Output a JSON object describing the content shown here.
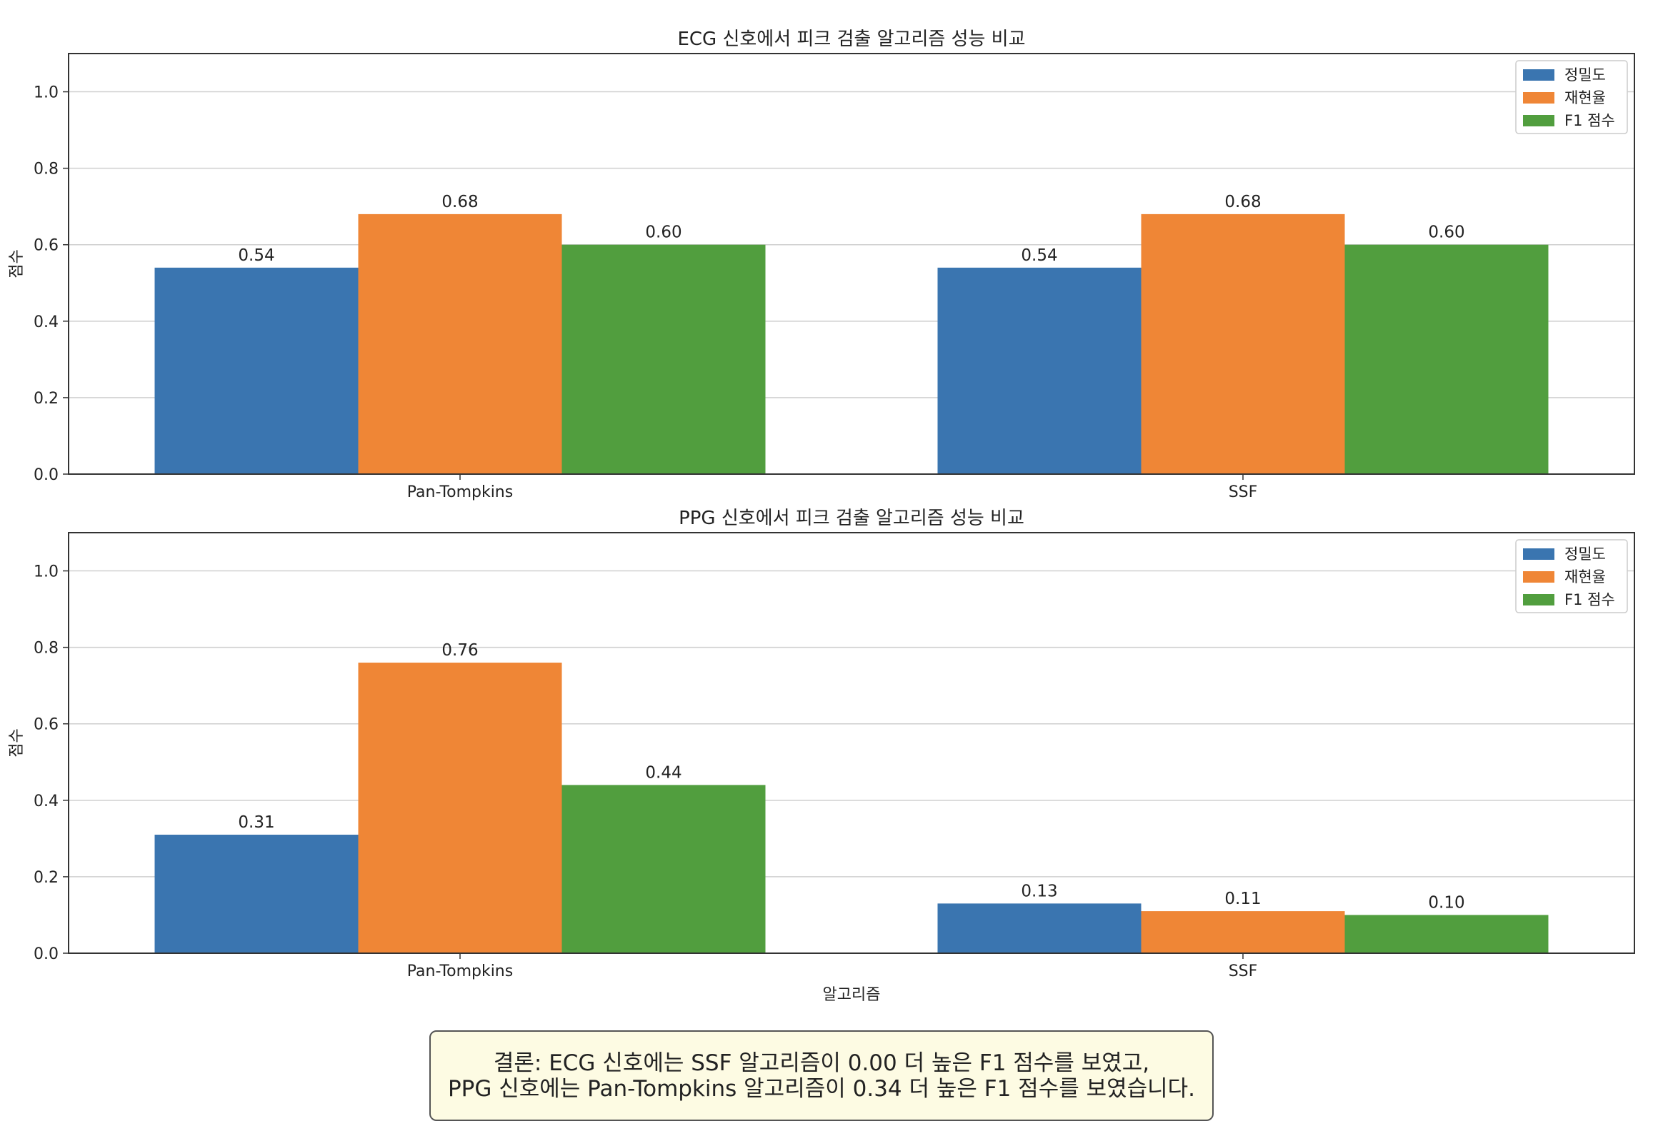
{
  "chart_data": [
    {
      "type": "bar",
      "title": "ECG 신호에서 피크 검출 알고리즘 성능 비교",
      "xlabel": "",
      "ylabel": "점수",
      "ylim": [
        0,
        1.1
      ],
      "yticks": [
        "0.0",
        "0.2",
        "0.4",
        "0.6",
        "0.8",
        "1.0"
      ],
      "grid": "horizontal",
      "legend_position": "top-right",
      "categories": [
        "Pan-Tompkins",
        "SSF"
      ],
      "series": [
        {
          "name": "정밀도",
          "color": "#3a75b0",
          "values": [
            0.54,
            0.54
          ],
          "labels": [
            "0.54",
            "0.54"
          ]
        },
        {
          "name": "재현율",
          "color": "#ef8636",
          "values": [
            0.68,
            0.68
          ],
          "labels": [
            "0.68",
            "0.68"
          ]
        },
        {
          "name": "F1 점수",
          "color": "#519e3e",
          "values": [
            0.6,
            0.6
          ],
          "labels": [
            "0.60",
            "0.60"
          ]
        }
      ]
    },
    {
      "type": "bar",
      "title": "PPG 신호에서 피크 검출 알고리즘 성능 비교",
      "xlabel": "알고리즘",
      "ylabel": "점수",
      "ylim": [
        0,
        1.1
      ],
      "yticks": [
        "0.0",
        "0.2",
        "0.4",
        "0.6",
        "0.8",
        "1.0"
      ],
      "grid": "horizontal",
      "legend_position": "top-right",
      "categories": [
        "Pan-Tompkins",
        "SSF"
      ],
      "series": [
        {
          "name": "정밀도",
          "color": "#3a75b0",
          "values": [
            0.31,
            0.13
          ],
          "labels": [
            "0.31",
            "0.13"
          ]
        },
        {
          "name": "재현율",
          "color": "#ef8636",
          "values": [
            0.76,
            0.11
          ],
          "labels": [
            "0.76",
            "0.11"
          ]
        },
        {
          "name": "F1 점수",
          "color": "#519e3e",
          "values": [
            0.44,
            0.1
          ],
          "labels": [
            "0.44",
            "0.10"
          ]
        }
      ]
    }
  ],
  "conclusion": {
    "line1": "결론: ECG 신호에는 SSF 알고리즘이 0.00 더 높은 F1 점수를 보였고,",
    "line2": "PPG 신호에는 Pan-Tompkins 알고리즘이 0.34 더 높은 F1 점수를 보였습니다."
  }
}
